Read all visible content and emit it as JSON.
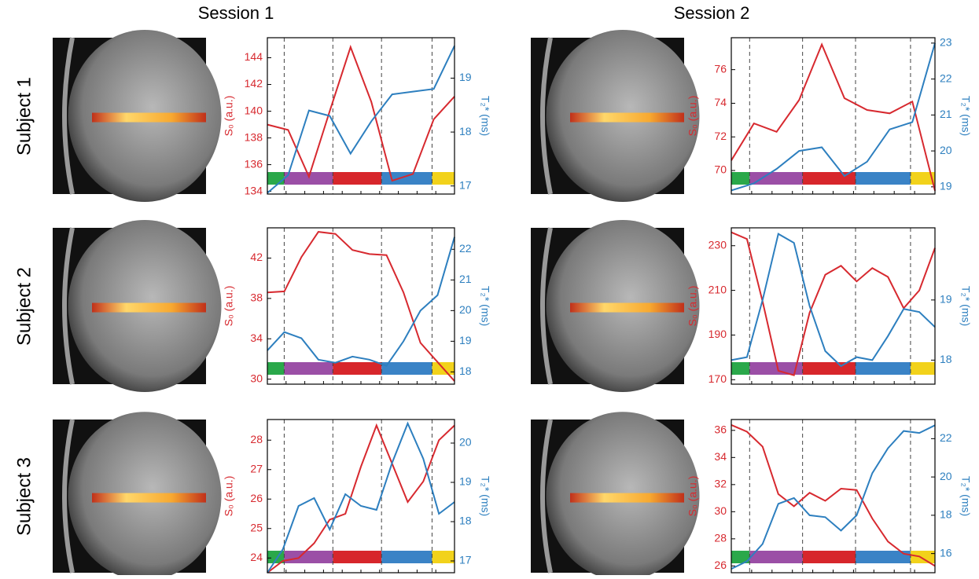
{
  "column_titles": [
    "Session 1",
    "Session 2"
  ],
  "row_titles": [
    "Subject 1",
    "Subject 2",
    "Subject 3"
  ],
  "chart_data": [
    {
      "type": "line",
      "ylabel": "S₀ (a.u.)",
      "y2label": "T₂* (ms)",
      "ylim": [
        133.8,
        145.5
      ],
      "yticks": [
        134,
        136,
        138,
        140,
        142,
        144
      ],
      "y2lim": [
        16.85,
        19.75
      ],
      "y2ticks": [
        17,
        18,
        19
      ],
      "series": [
        {
          "color": "#d7292f",
          "values": [
            139,
            138.6,
            135.1,
            140,
            144.8,
            140.7,
            134.8,
            135.3,
            139.4,
            141.1
          ]
        },
        {
          "color": "#2d7fbf",
          "axis": "y2",
          "values": [
            16.87,
            17.2,
            18.4,
            18.3,
            17.6,
            18.2,
            18.7,
            18.75,
            18.8,
            19.6
          ]
        }
      ]
    },
    {
      "type": "line",
      "ylabel": "S₀ (a.u.)",
      "y2label": "T₂* (ms)",
      "ylim": [
        68.6,
        77.9
      ],
      "yticks": [
        70,
        72,
        74,
        76
      ],
      "y2lim": [
        18.8,
        23.15
      ],
      "y2ticks": [
        19,
        20,
        21,
        22,
        23
      ],
      "series": [
        {
          "color": "#d7292f",
          "values": [
            70.6,
            72.8,
            72.3,
            74.2,
            77.5,
            74.3,
            73.6,
            73.4,
            74.1,
            68.8
          ]
        },
        {
          "color": "#2d7fbf",
          "axis": "y2",
          "values": [
            18.9,
            19.1,
            19.5,
            20.0,
            20.1,
            19.3,
            19.7,
            20.6,
            20.8,
            23.0
          ]
        }
      ]
    },
    {
      "type": "line",
      "ylabel": "S₀ (a.u.)",
      "y2label": "T₂* (ms)",
      "ylim": [
        29.5,
        45
      ],
      "yticks": [
        30,
        34,
        38,
        42
      ],
      "y2lim": [
        17.6,
        22.7
      ],
      "y2ticks": [
        18,
        19,
        20,
        21,
        22
      ],
      "series": [
        {
          "color": "#d7292f",
          "values": [
            38.6,
            38.7,
            42.1,
            44.6,
            44.4,
            42.8,
            42.4,
            42.3,
            38.6,
            33.6,
            31.7,
            29.8
          ]
        },
        {
          "color": "#2d7fbf",
          "axis": "y2",
          "values": [
            18.7,
            19.3,
            19.1,
            18.4,
            18.3,
            18.5,
            18.4,
            18.2,
            19.0,
            20.0,
            20.5,
            22.4
          ]
        }
      ]
    },
    {
      "type": "line",
      "ylabel": "S₀ (a.u.)",
      "y2label": "T₂* (ms)",
      "ylim": [
        168,
        238
      ],
      "yticks": [
        170,
        190,
        210,
        230
      ],
      "y2lim": [
        17.6,
        20.2
      ],
      "y2ticks": [
        18,
        19
      ],
      "series": [
        {
          "color": "#d7292f",
          "values": [
            236,
            233,
            205,
            174,
            172,
            200,
            217,
            221,
            214,
            220,
            216,
            202,
            210,
            229
          ]
        },
        {
          "color": "#2d7fbf",
          "axis": "y2",
          "values": [
            18.0,
            18.05,
            19.0,
            20.1,
            19.95,
            18.9,
            18.15,
            17.9,
            18.05,
            18.0,
            18.4,
            18.85,
            18.8,
            18.55
          ]
        }
      ]
    },
    {
      "type": "line",
      "ylabel": "S₀ (a.u.)",
      "y2label": "T₂* (ms)",
      "ylim": [
        23.5,
        28.7
      ],
      "yticks": [
        24,
        25,
        26,
        27,
        28
      ],
      "y2lim": [
        16.7,
        20.6
      ],
      "y2ticks": [
        17,
        18,
        19,
        20
      ],
      "series": [
        {
          "color": "#d7292f",
          "values": [
            23.5,
            23.9,
            24.0,
            24.5,
            25.3,
            25.5,
            27.1,
            28.5,
            27.2,
            25.9,
            26.6,
            28.0,
            28.5
          ]
        },
        {
          "color": "#2d7fbf",
          "axis": "y2",
          "values": [
            16.7,
            17.3,
            18.4,
            18.6,
            17.8,
            18.7,
            18.4,
            18.3,
            19.5,
            20.5,
            19.6,
            18.2,
            18.5
          ]
        }
      ]
    },
    {
      "type": "line",
      "ylabel": "S₀ (a.u.)",
      "y2label": "T₂* (ms)",
      "ylim": [
        25.5,
        36.8
      ],
      "yticks": [
        26,
        28,
        30,
        32,
        34,
        36
      ],
      "y2lim": [
        15,
        23
      ],
      "y2ticks": [
        16,
        18,
        20,
        22
      ],
      "series": [
        {
          "color": "#d7292f",
          "values": [
            36.4,
            35.9,
            34.8,
            31.3,
            30.4,
            31.4,
            30.8,
            31.7,
            31.6,
            29.5,
            27.8,
            26.9,
            26.7,
            26.0
          ]
        },
        {
          "color": "#2d7fbf",
          "axis": "y2",
          "values": [
            15.2,
            15.6,
            16.5,
            18.6,
            18.9,
            18.0,
            17.9,
            17.2,
            18.0,
            20.2,
            21.5,
            22.4,
            22.3,
            22.7
          ]
        }
      ]
    }
  ]
}
